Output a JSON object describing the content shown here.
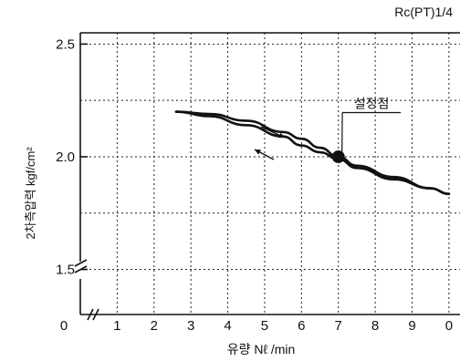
{
  "chart_data": {
    "type": "line",
    "spec_label": "Rc(PT)1/4",
    "xlabel": "유량 Nℓ /min",
    "ylabel": "2차측압력 kgf/cm²",
    "x_ticks": [
      "0",
      "1",
      "2",
      "3",
      "4",
      "5",
      "6",
      "7",
      "8",
      "9",
      "0"
    ],
    "x_tick_values": [
      0.3,
      1,
      2,
      3,
      4,
      5,
      6,
      7,
      8,
      9,
      10
    ],
    "y_ticks": [
      "1.5",
      "2.0",
      "2.5"
    ],
    "y_tick_values": [
      1.5,
      2.0,
      2.5
    ],
    "xlim": [
      0,
      10.3
    ],
    "ylim": [
      1.3,
      2.55
    ],
    "grid": true,
    "axis_break": true,
    "series": [
      {
        "x": [
          2.6,
          3.5,
          4.5,
          5.5,
          6.0,
          6.5,
          7.0,
          7.5,
          8.5,
          9.5,
          10.0
        ],
        "y": [
          2.2,
          2.18,
          2.14,
          2.09,
          2.05,
          2.02,
          1.99,
          1.95,
          1.9,
          1.86,
          1.835
        ]
      },
      {
        "x": [
          2.6,
          3.5,
          4.5,
          5.5,
          6.0,
          6.5,
          7.0,
          7.5,
          8.5,
          9.5,
          10.0
        ],
        "y": [
          2.2,
          2.19,
          2.16,
          2.11,
          2.08,
          2.04,
          2.0,
          1.96,
          1.91,
          1.86,
          1.835
        ]
      }
    ],
    "set_point": {
      "x": 7.0,
      "y": 2.0
    },
    "annotations": [
      {
        "text": "설정점",
        "x": 7.9,
        "y": 2.2
      }
    ]
  }
}
